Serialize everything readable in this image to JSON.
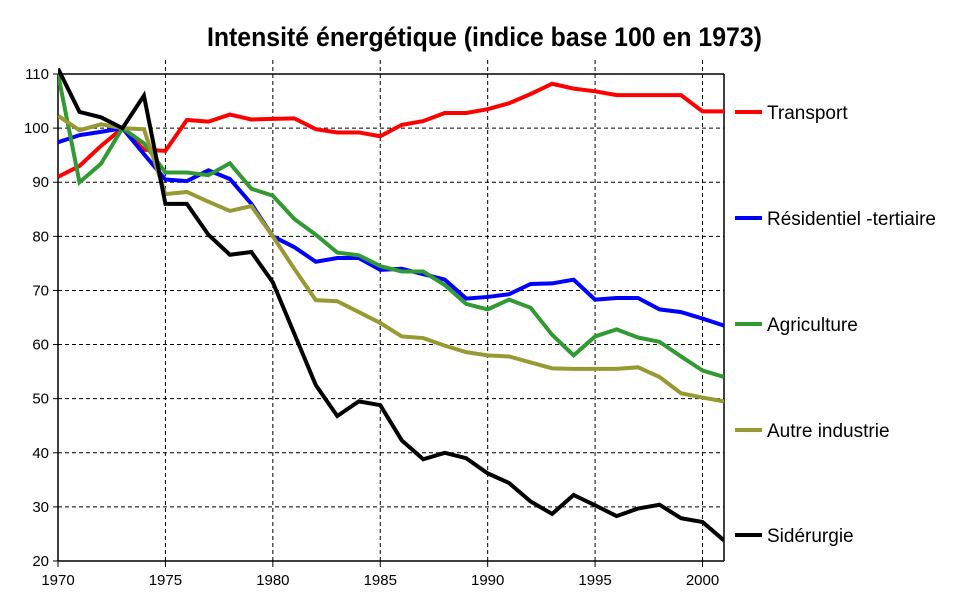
{
  "chart_data": {
    "type": "line",
    "title": "Intensité énergétique (indice base 100 en 1973)",
    "xlabel": "",
    "ylabel": "",
    "xlim": [
      1970,
      2001
    ],
    "ylim": [
      20,
      110
    ],
    "x_ticks": [
      "1970",
      "1975",
      "1980",
      "1985",
      "1990",
      "1995",
      "2000"
    ],
    "y_ticks": [
      "20",
      "30",
      "40",
      "50",
      "60",
      "70",
      "80",
      "90",
      "100",
      "110"
    ],
    "grid": true,
    "legend_position": "right",
    "x": [
      1970,
      1971,
      1972,
      1973,
      1974,
      1975,
      1976,
      1977,
      1978,
      1979,
      1980,
      1981,
      1982,
      1983,
      1984,
      1985,
      1986,
      1987,
      1988,
      1989,
      1990,
      1991,
      1992,
      1993,
      1994,
      1995,
      1996,
      1997,
      1998,
      1999,
      2000,
      2001
    ],
    "series": [
      {
        "name": "Transport",
        "color": "#ff0000",
        "values": [
          91,
          93,
          96.7,
          100,
          96,
          95.8,
          101.5,
          101.2,
          102.5,
          101.6,
          101.7,
          101.8,
          99.8,
          99.2,
          99.2,
          98.5,
          100.6,
          101.3,
          102.8,
          102.8,
          103.5,
          104.6,
          106.3,
          108.2,
          107.3,
          106.8,
          106.1,
          106.1,
          106.1,
          106.1,
          103.1,
          103.1
        ]
      },
      {
        "name": "Résidentiel -tertiaire",
        "color": "#0000ff",
        "values": [
          97.4,
          98.7,
          99.3,
          100,
          95.2,
          90.5,
          90.2,
          92.2,
          90.6,
          86,
          80,
          78,
          75.3,
          76,
          76,
          73.8,
          74,
          73,
          72,
          68.5,
          68.8,
          69.3,
          71.2,
          71.3,
          72,
          68.3,
          68.6,
          68.6,
          66.5,
          66,
          64.8,
          63.5
        ]
      },
      {
        "name": "Agriculture",
        "color": "#339933",
        "values": [
          110,
          90,
          93.4,
          100,
          97.2,
          91.8,
          91.8,
          91.3,
          93.5,
          88.8,
          87.5,
          83.2,
          80.3,
          77,
          76.5,
          74.5,
          73.5,
          73.5,
          71,
          67.5,
          66.5,
          68.3,
          66.8,
          61.8,
          58,
          61.5,
          62.8,
          61.3,
          60.5,
          57.8,
          55.2,
          54
        ]
      },
      {
        "name": "Autre industrie",
        "color": "#999933",
        "values": [
          102.3,
          99.6,
          100.7,
          100,
          99.8,
          87.8,
          88.2,
          86.4,
          84.7,
          85.6,
          80,
          74,
          68.2,
          68,
          66,
          64,
          61.5,
          61.2,
          59.8,
          58.6,
          58,
          57.8,
          56.7,
          55.6,
          55.5,
          55.5,
          55.5,
          55.8,
          54,
          51,
          50.2,
          49.5
        ]
      },
      {
        "name": "Sidérurgie",
        "color": "#000000",
        "values": [
          111,
          103,
          102,
          100,
          106,
          86,
          86,
          80.3,
          76.6,
          77.1,
          71.5,
          62,
          52.5,
          46.8,
          49.5,
          48.8,
          42.3,
          38.8,
          40,
          39,
          36.2,
          34.4,
          31,
          28.7,
          32.2,
          30.3,
          28.3,
          29.7,
          30.4,
          27.9,
          27.2,
          23.8
        ]
      }
    ]
  }
}
